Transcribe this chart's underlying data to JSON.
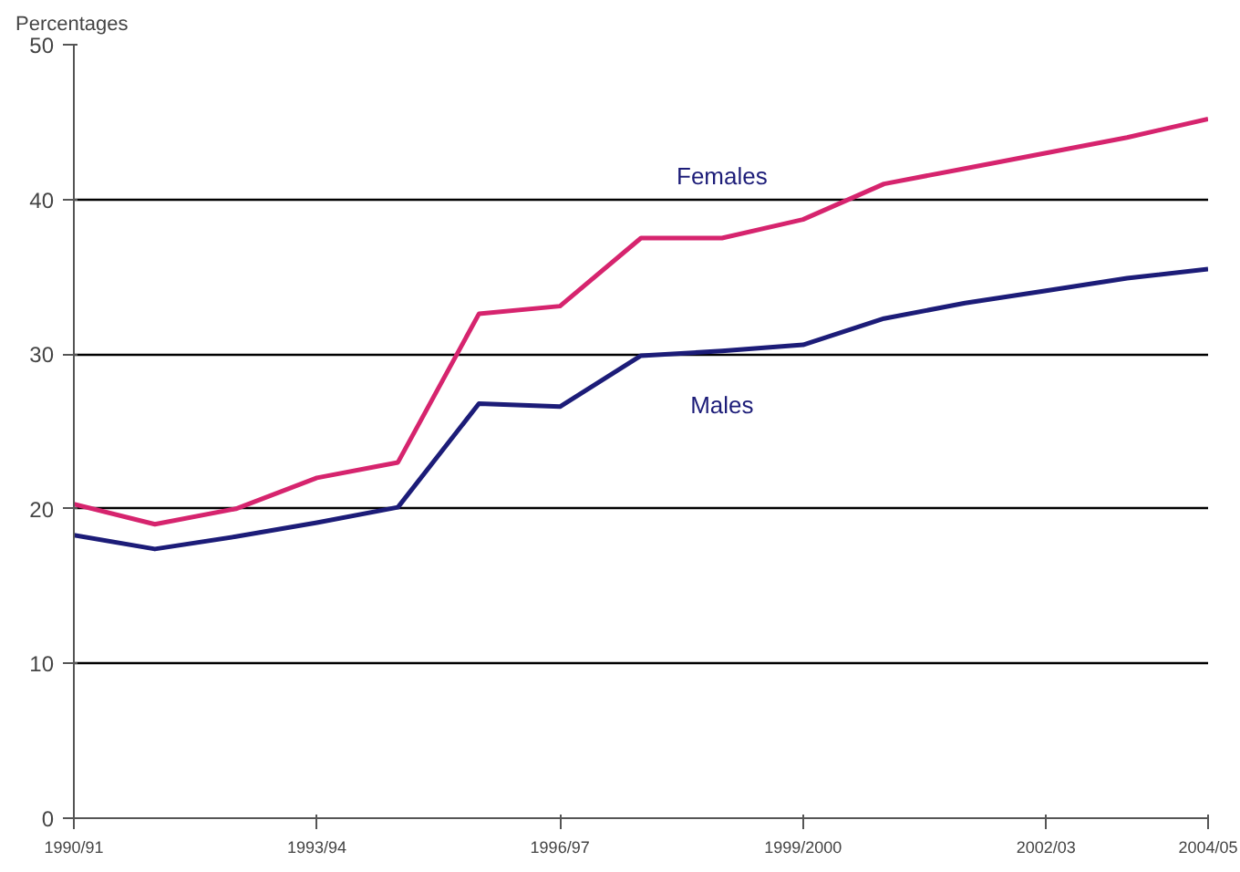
{
  "chart_data": {
    "type": "line",
    "ylabel": "Percentages",
    "categories": [
      "1990/91",
      null,
      null,
      "1993/94",
      null,
      null,
      "1996/97",
      null,
      null,
      "1999/2000",
      null,
      null,
      "2002/03",
      null,
      "2004/05"
    ],
    "series": [
      {
        "name": "Females",
        "color": "#d6246e",
        "values": [
          20.3,
          19.0,
          20.0,
          22.0,
          23.0,
          32.6,
          33.1,
          37.5,
          37.5,
          38.7,
          41.0,
          42.0,
          43.0,
          44.0,
          45.2
        ]
      },
      {
        "name": "Males",
        "color": "#1c1c78",
        "values": [
          18.3,
          17.4,
          18.2,
          19.1,
          20.1,
          26.8,
          26.6,
          29.9,
          30.2,
          30.6,
          32.3,
          33.3,
          34.1,
          34.9,
          35.5
        ]
      }
    ],
    "ylim": [
      0,
      50
    ],
    "yticks": [
      0,
      10,
      20,
      30,
      40,
      50
    ],
    "grid": "y",
    "legend": false,
    "marker": "none",
    "line_style": "solid"
  }
}
